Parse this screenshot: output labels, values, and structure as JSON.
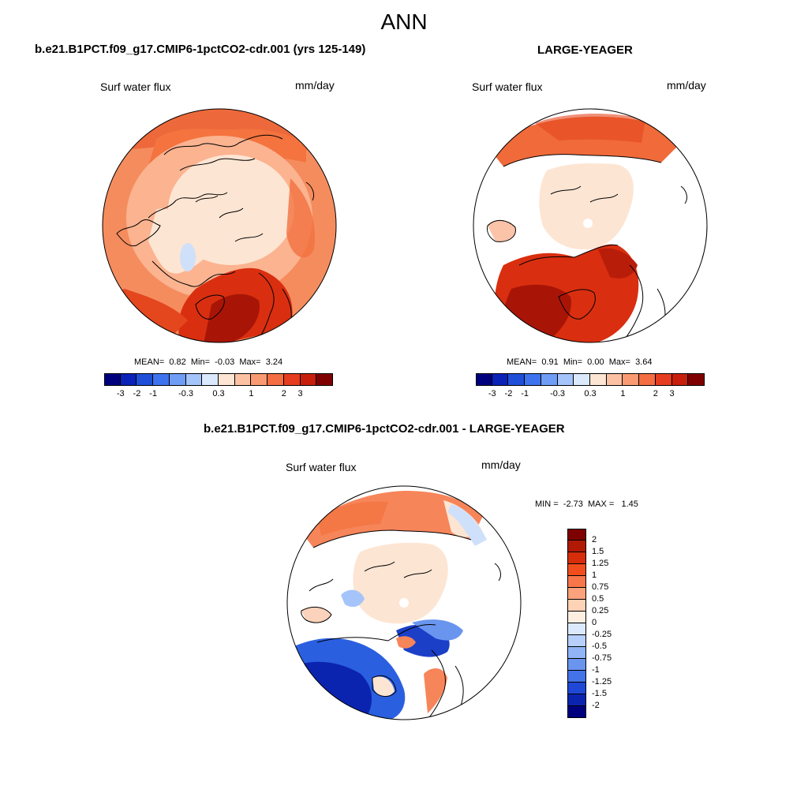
{
  "page": {
    "title": "ANN"
  },
  "panels": [
    {
      "case_title": "b.e21.B1PCT.f09_g17.CMIP6-1pctCO2-cdr.001 (yrs 125-149)",
      "variable": "Surf water flux",
      "units": "mm/day",
      "stats": {
        "mean_label": "MEAN=",
        "mean": "0.82",
        "min_label": "Min=",
        "min": "-0.03",
        "max_label": "Max=",
        "max": "3.24"
      },
      "colorbar_labels": [
        "-3",
        "-2",
        "-1",
        "-0.3",
        "0.3",
        "1",
        "2",
        "3"
      ]
    },
    {
      "case_title": "LARGE-YEAGER",
      "variable": "Surf water flux",
      "units": "mm/day",
      "stats": {
        "mean_label": "MEAN=",
        "mean": "0.91",
        "min_label": "Min=",
        "min": "0.00",
        "max_label": "Max=",
        "max": "3.64"
      },
      "colorbar_labels": [
        "-3",
        "-2",
        "-1",
        "-0.3",
        "0.3",
        "1",
        "2",
        "3"
      ]
    }
  ],
  "diff_panel": {
    "case_title": "b.e21.B1PCT.f09_g17.CMIP6-1pctCO2-cdr.001 - LARGE-YEAGER",
    "variable": "Surf water flux",
    "units": "mm/day",
    "min_label": "MIN =",
    "min": "-2.73",
    "max_label": "MAX =",
    "max": "1.45",
    "colorbar_labels": [
      "2",
      "1.5",
      "1.25",
      "1",
      "0.75",
      "0.5",
      "0.25",
      "0",
      "-0.25",
      "-0.5",
      "-0.75",
      "-1",
      "-1.25",
      "-1.5",
      "-2"
    ]
  },
  "colors": {
    "main_scale": [
      "#00007f",
      "#0a22b8",
      "#1f4fd8",
      "#3d73ee",
      "#6f9cf5",
      "#a5c4fa",
      "#dbe9fd",
      "#fde5d3",
      "#fcc1a3",
      "#fa9a72",
      "#f46d43",
      "#e63c1f",
      "#c81f0c",
      "#7f0000"
    ],
    "diff_scale": [
      "#7f0000",
      "#b01a05",
      "#d62d0b",
      "#f24e1d",
      "#f7764a",
      "#fba27c",
      "#fdd2b6",
      "#fdeee2",
      "#dbe9fd",
      "#b6d0fb",
      "#90b4f6",
      "#6a95ef",
      "#4472e8",
      "#2048d6",
      "#0b24b0",
      "#00007f"
    ]
  }
}
